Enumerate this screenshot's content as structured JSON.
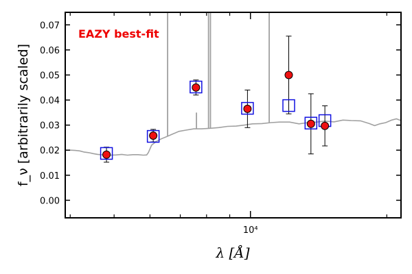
{
  "chart_data": {
    "type": "scatter",
    "annotation": "EAZY best-fit",
    "xlabel": "λ [Å]",
    "ylabel": "f_ν [arbitrarily scaled]",
    "x_scale": "log",
    "xlim": [
      3900,
      21500
    ],
    "ylim": [
      -0.007,
      0.075
    ],
    "y_ticks": [
      0.0,
      0.01,
      0.02,
      0.03,
      0.04,
      0.05,
      0.06,
      0.07
    ],
    "y_tick_labels": [
      "0.00",
      "0.01",
      "0.02",
      "0.03",
      "0.04",
      "0.05",
      "0.06",
      "0.07"
    ],
    "x_major_tick": 10000,
    "x_major_tick_label": "10⁴",
    "x_minor_ticks": [
      4000,
      5000,
      6000,
      7000,
      8000,
      9000,
      20000
    ],
    "grid": false,
    "colors": {
      "template": "#a0a0a0",
      "model_box": "#1010e0",
      "data_point": "#ee1111",
      "error_bar": "#000000",
      "annotation": "#ee0000"
    },
    "template_continuum": [
      {
        "x": 3900,
        "y": 0.0199
      },
      {
        "x": 4000,
        "y": 0.02
      },
      {
        "x": 4100,
        "y": 0.0199
      },
      {
        "x": 4200,
        "y": 0.0197
      },
      {
        "x": 4300,
        "y": 0.0192
      },
      {
        "x": 4400,
        "y": 0.019
      },
      {
        "x": 4500,
        "y": 0.0186
      },
      {
        "x": 4600,
        "y": 0.0183
      },
      {
        "x": 4750,
        "y": 0.0181
      },
      {
        "x": 4900,
        "y": 0.018
      },
      {
        "x": 5050,
        "y": 0.0181
      },
      {
        "x": 5200,
        "y": 0.0183
      },
      {
        "x": 5350,
        "y": 0.018
      },
      {
        "x": 5500,
        "y": 0.0182
      },
      {
        "x": 5650,
        "y": 0.0182
      },
      {
        "x": 5800,
        "y": 0.018
      },
      {
        "x": 5900,
        "y": 0.0181
      },
      {
        "x": 5950,
        "y": 0.019
      },
      {
        "x": 6050,
        "y": 0.022
      },
      {
        "x": 6200,
        "y": 0.0235
      },
      {
        "x": 6350,
        "y": 0.0245
      },
      {
        "x": 6550,
        "y": 0.0255
      },
      {
        "x": 6750,
        "y": 0.0265
      },
      {
        "x": 6950,
        "y": 0.0275
      },
      {
        "x": 7200,
        "y": 0.028
      },
      {
        "x": 7500,
        "y": 0.0285
      },
      {
        "x": 7800,
        "y": 0.0285
      },
      {
        "x": 8100,
        "y": 0.0287
      },
      {
        "x": 8500,
        "y": 0.029
      },
      {
        "x": 8900,
        "y": 0.0295
      },
      {
        "x": 9300,
        "y": 0.0296
      },
      {
        "x": 9700,
        "y": 0.03
      },
      {
        "x": 10100,
        "y": 0.0305
      },
      {
        "x": 10600,
        "y": 0.0306
      },
      {
        "x": 11100,
        "y": 0.031
      },
      {
        "x": 11600,
        "y": 0.0312
      },
      {
        "x": 12200,
        "y": 0.0312
      },
      {
        "x": 12800,
        "y": 0.0305
      },
      {
        "x": 13400,
        "y": 0.031
      },
      {
        "x": 14000,
        "y": 0.0312
      },
      {
        "x": 14600,
        "y": 0.0316
      },
      {
        "x": 15300,
        "y": 0.0313
      },
      {
        "x": 16000,
        "y": 0.032
      },
      {
        "x": 16700,
        "y": 0.0318
      },
      {
        "x": 17500,
        "y": 0.0317
      },
      {
        "x": 18300,
        "y": 0.0306
      },
      {
        "x": 18800,
        "y": 0.0298
      },
      {
        "x": 19300,
        "y": 0.0305
      },
      {
        "x": 19900,
        "y": 0.031
      },
      {
        "x": 20500,
        "y": 0.032
      },
      {
        "x": 21000,
        "y": 0.0325
      },
      {
        "x": 21500,
        "y": 0.0318
      }
    ],
    "template_emission_lines": [
      {
        "x": 6563,
        "y_top": 0.075
      },
      {
        "x": 8080,
        "y_top": 0.075
      },
      {
        "x": 8160,
        "y_top": 0.075
      },
      {
        "x": 11000,
        "y_top": 0.075
      },
      {
        "x": 7600,
        "y_top": 0.035
      }
    ],
    "series": [
      {
        "kind": "model_photometry",
        "points": [
          {
            "x": 4810,
            "y": 0.0187
          },
          {
            "x": 6100,
            "y": 0.0255
          },
          {
            "x": 7580,
            "y": 0.0452
          },
          {
            "x": 9850,
            "y": 0.0367
          },
          {
            "x": 12150,
            "y": 0.0378
          },
          {
            "x": 13600,
            "y": 0.0308
          },
          {
            "x": 14600,
            "y": 0.0318
          }
        ]
      },
      {
        "kind": "observed_photometry",
        "points": [
          {
            "x": 4810,
            "y": 0.0182,
            "yerr_lo": 0.003,
            "yerr_hi": 0.003
          },
          {
            "x": 6100,
            "y": 0.0258,
            "yerr_lo": 0.0025,
            "yerr_hi": 0.0025
          },
          {
            "x": 7580,
            "y": 0.045,
            "yerr_lo": 0.003,
            "yerr_hi": 0.003
          },
          {
            "x": 9850,
            "y": 0.0365,
            "yerr_lo": 0.0075,
            "yerr_hi": 0.0075
          },
          {
            "x": 12150,
            "y": 0.05,
            "yerr_lo": 0.0155,
            "yerr_hi": 0.0155
          },
          {
            "x": 13600,
            "y": 0.0305,
            "yerr_lo": 0.012,
            "yerr_hi": 0.012
          },
          {
            "x": 14600,
            "y": 0.0297,
            "yerr_lo": 0.008,
            "yerr_hi": 0.008
          }
        ]
      }
    ]
  }
}
